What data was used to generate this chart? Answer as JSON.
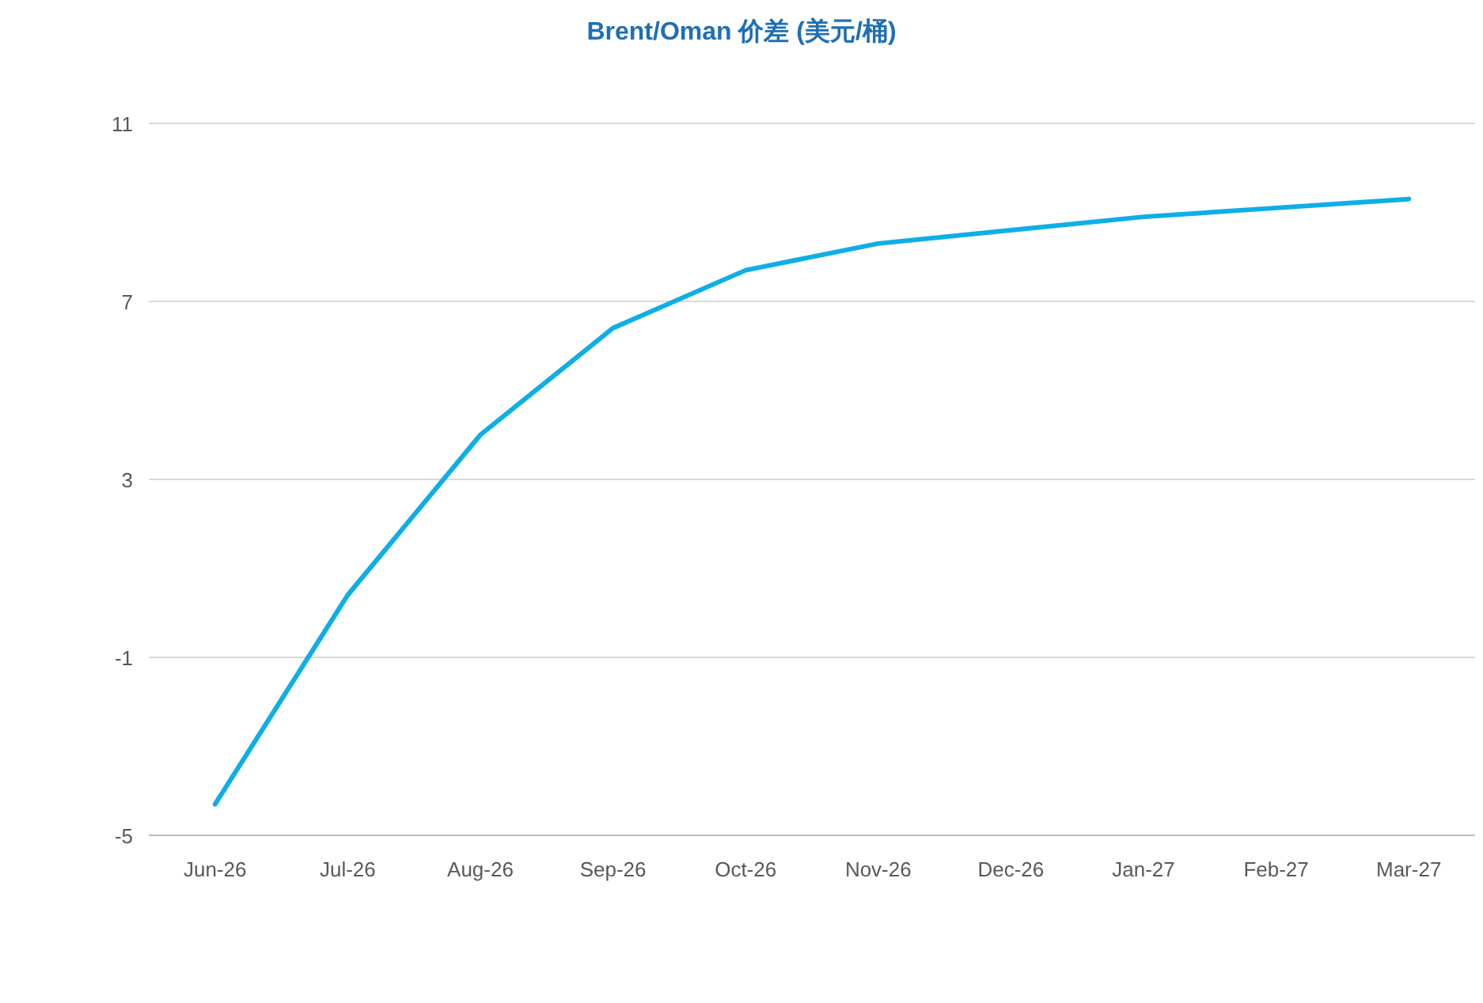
{
  "chart_data": {
    "type": "line",
    "title": "Brent/Oman 价差 (美元/桶)",
    "categories": [
      "Jun-26",
      "Jul-26",
      "Aug-26",
      "Sep-26",
      "Oct-26",
      "Nov-26",
      "Dec-26",
      "Jan-27",
      "Feb-27",
      "Mar-27"
    ],
    "series": [
      {
        "color": "#0eaee6",
        "values": [
          -4.3,
          0.4,
          4.0,
          6.4,
          7.7,
          8.3,
          8.6,
          8.9,
          9.1,
          9.3
        ]
      }
    ],
    "ylim": [
      -5,
      11
    ],
    "yticks": [
      -5,
      -1,
      3,
      7,
      11
    ],
    "grid": "y",
    "marker": "none",
    "line_style": "solid"
  }
}
